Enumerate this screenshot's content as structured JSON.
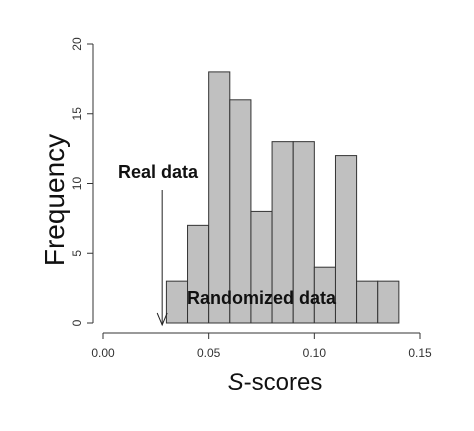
{
  "chart_data": {
    "type": "bar",
    "subtype": "histogram",
    "bins": [
      {
        "start": 0.03,
        "end": 0.04,
        "count": 3
      },
      {
        "start": 0.04,
        "end": 0.05,
        "count": 7
      },
      {
        "start": 0.05,
        "end": 0.06,
        "count": 18
      },
      {
        "start": 0.06,
        "end": 0.07,
        "count": 16
      },
      {
        "start": 0.07,
        "end": 0.08,
        "count": 8
      },
      {
        "start": 0.08,
        "end": 0.09,
        "count": 13
      },
      {
        "start": 0.09,
        "end": 0.1,
        "count": 13
      },
      {
        "start": 0.1,
        "end": 0.11,
        "count": 4
      },
      {
        "start": 0.11,
        "end": 0.12,
        "count": 12
      },
      {
        "start": 0.12,
        "end": 0.13,
        "count": 3
      },
      {
        "start": 0.13,
        "end": 0.14,
        "count": 3
      }
    ],
    "xlabel_italic": "S",
    "xlabel_rest": "-scores",
    "ylabel": "Frequency",
    "xlim": [
      0.0,
      0.15
    ],
    "ylim": [
      0,
      20
    ],
    "x_ticks": [
      "0.00",
      "0.05",
      "0.10",
      "0.15"
    ],
    "x_tick_values": [
      0.0,
      0.05,
      0.1,
      0.15
    ],
    "y_ticks": [
      "0",
      "5",
      "10",
      "15",
      "20"
    ],
    "y_tick_values": [
      0,
      5,
      10,
      15,
      20
    ],
    "grid": false,
    "bar_fill": "#c0c0c0",
    "bar_stroke": "#333333",
    "annotations": [
      {
        "text": "Real data",
        "arrow_to_x": 0.028,
        "arrow_to_y": 0
      },
      {
        "text": "Randomized data"
      }
    ]
  }
}
